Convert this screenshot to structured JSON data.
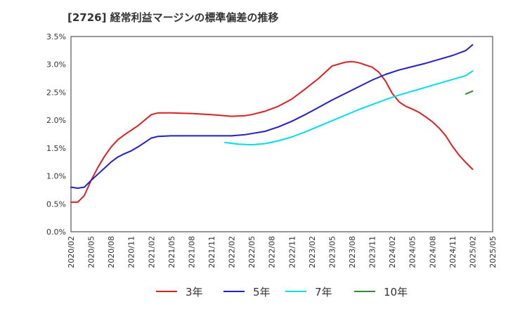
{
  "title": "[2726]  経常利益マージンの標準偏差の推移",
  "chart_data": {
    "type": "line",
    "title": "[2726]  経常利益マージンの標準偏差の推移",
    "xlabel": "",
    "ylabel": "",
    "ylim": [
      0,
      3.5
    ],
    "yticks": [
      "0.0%",
      "0.5%",
      "1.0%",
      "1.5%",
      "2.0%",
      "2.5%",
      "3.0%",
      "3.5%"
    ],
    "xticks": [
      "2020/02",
      "2020/05",
      "2020/08",
      "2020/11",
      "2021/02",
      "2021/05",
      "2021/08",
      "2021/11",
      "2022/02",
      "2022/05",
      "2022/08",
      "2022/11",
      "2023/02",
      "2023/05",
      "2023/08",
      "2023/11",
      "2024/02",
      "2024/05",
      "2024/08",
      "2024/11",
      "2025/02",
      "2025/05"
    ],
    "grid": true,
    "legend_position": "bottom",
    "series": [
      {
        "name": "3年",
        "color": "#dd1f1f",
        "points": [
          [
            "2020/02",
            0.53
          ],
          [
            "2020/03",
            0.53
          ],
          [
            "2020/04",
            0.65
          ],
          [
            "2020/05",
            0.92
          ],
          [
            "2020/06",
            1.15
          ],
          [
            "2020/07",
            1.35
          ],
          [
            "2020/08",
            1.52
          ],
          [
            "2020/09",
            1.65
          ],
          [
            "2020/10",
            1.74
          ],
          [
            "2020/11",
            1.82
          ],
          [
            "2020/12",
            1.9
          ],
          [
            "2021/01",
            2.0
          ],
          [
            "2021/02",
            2.1
          ],
          [
            "2021/03",
            2.13
          ],
          [
            "2021/05",
            2.13
          ],
          [
            "2021/08",
            2.12
          ],
          [
            "2021/11",
            2.1
          ],
          [
            "2022/02",
            2.07
          ],
          [
            "2022/04",
            2.08
          ],
          [
            "2022/05",
            2.1
          ],
          [
            "2022/07",
            2.16
          ],
          [
            "2022/09",
            2.25
          ],
          [
            "2022/11",
            2.38
          ],
          [
            "2023/01",
            2.56
          ],
          [
            "2023/03",
            2.75
          ],
          [
            "2023/05",
            2.97
          ],
          [
            "2023/07",
            3.04
          ],
          [
            "2023/08",
            3.05
          ],
          [
            "2023/09",
            3.03
          ],
          [
            "2023/11",
            2.95
          ],
          [
            "2023/12",
            2.86
          ],
          [
            "2024/01",
            2.7
          ],
          [
            "2024/02",
            2.48
          ],
          [
            "2024/03",
            2.33
          ],
          [
            "2024/04",
            2.25
          ],
          [
            "2024/05",
            2.2
          ],
          [
            "2024/06",
            2.14
          ],
          [
            "2024/07",
            2.06
          ],
          [
            "2024/08",
            1.97
          ],
          [
            "2024/09",
            1.86
          ],
          [
            "2024/10",
            1.72
          ],
          [
            "2024/11",
            1.53
          ],
          [
            "2024/12",
            1.37
          ],
          [
            "2025/01",
            1.24
          ],
          [
            "2025/02",
            1.12
          ]
        ]
      },
      {
        "name": "5年",
        "color": "#1f1fcc",
        "points": [
          [
            "2020/02",
            0.8
          ],
          [
            "2020/03",
            0.78
          ],
          [
            "2020/04",
            0.8
          ],
          [
            "2020/05",
            0.92
          ],
          [
            "2020/06",
            1.03
          ],
          [
            "2020/07",
            1.14
          ],
          [
            "2020/08",
            1.25
          ],
          [
            "2020/09",
            1.34
          ],
          [
            "2020/10",
            1.4
          ],
          [
            "2020/11",
            1.45
          ],
          [
            "2020/12",
            1.52
          ],
          [
            "2021/01",
            1.6
          ],
          [
            "2021/02",
            1.68
          ],
          [
            "2021/03",
            1.71
          ],
          [
            "2021/05",
            1.72
          ],
          [
            "2021/08",
            1.72
          ],
          [
            "2021/11",
            1.72
          ],
          [
            "2022/02",
            1.72
          ],
          [
            "2022/04",
            1.74
          ],
          [
            "2022/05",
            1.76
          ],
          [
            "2022/07",
            1.8
          ],
          [
            "2022/09",
            1.88
          ],
          [
            "2022/11",
            1.98
          ],
          [
            "2023/01",
            2.1
          ],
          [
            "2023/03",
            2.23
          ],
          [
            "2023/05",
            2.36
          ],
          [
            "2023/07",
            2.48
          ],
          [
            "2023/09",
            2.6
          ],
          [
            "2023/11",
            2.72
          ],
          [
            "2024/01",
            2.82
          ],
          [
            "2024/03",
            2.9
          ],
          [
            "2024/05",
            2.96
          ],
          [
            "2024/07",
            3.02
          ],
          [
            "2024/09",
            3.09
          ],
          [
            "2024/11",
            3.16
          ],
          [
            "2025/01",
            3.25
          ],
          [
            "2025/02",
            3.35
          ]
        ]
      },
      {
        "name": "7年",
        "color": "#00ddee",
        "points": [
          [
            "2022/01",
            1.6
          ],
          [
            "2022/03",
            1.57
          ],
          [
            "2022/05",
            1.56
          ],
          [
            "2022/07",
            1.58
          ],
          [
            "2022/09",
            1.63
          ],
          [
            "2022/11",
            1.7
          ],
          [
            "2023/01",
            1.79
          ],
          [
            "2023/03",
            1.89
          ],
          [
            "2023/05",
            1.99
          ],
          [
            "2023/07",
            2.09
          ],
          [
            "2023/09",
            2.19
          ],
          [
            "2023/11",
            2.28
          ],
          [
            "2024/01",
            2.37
          ],
          [
            "2024/03",
            2.45
          ],
          [
            "2024/05",
            2.52
          ],
          [
            "2024/07",
            2.59
          ],
          [
            "2024/09",
            2.66
          ],
          [
            "2024/11",
            2.73
          ],
          [
            "2025/01",
            2.8
          ],
          [
            "2025/02",
            2.88
          ]
        ]
      },
      {
        "name": "10年",
        "color": "#2e8b2e",
        "points": [
          [
            "2025/01",
            2.47
          ],
          [
            "2025/02",
            2.52
          ]
        ]
      }
    ]
  }
}
